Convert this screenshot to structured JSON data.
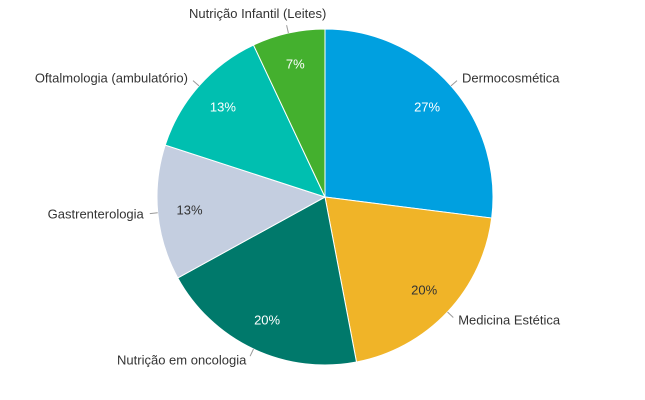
{
  "chart_data": {
    "type": "pie",
    "categories": [
      "Dermocosmética",
      "Medicina Estética",
      "Nutrição em oncologia",
      "Gastrenterologia",
      "Oftalmologia (ambulatório)",
      "Nutrição Infantil (Leites)"
    ],
    "values": [
      27,
      20,
      20,
      13,
      13,
      7
    ],
    "value_labels": [
      "27%",
      "20%",
      "20%",
      "13%",
      "13%",
      "7%"
    ],
    "colors": [
      "#00A0E0",
      "#F0B428",
      "#00796B",
      "#C4CEE0",
      "#00BFB0",
      "#44B02E"
    ],
    "label_colors": [
      "#ffffff",
      "#333333",
      "#ffffff",
      "#333333",
      "#ffffff",
      "#ffffff"
    ],
    "start": "12 o'clock",
    "direction": "clockwise",
    "legend": "none"
  }
}
